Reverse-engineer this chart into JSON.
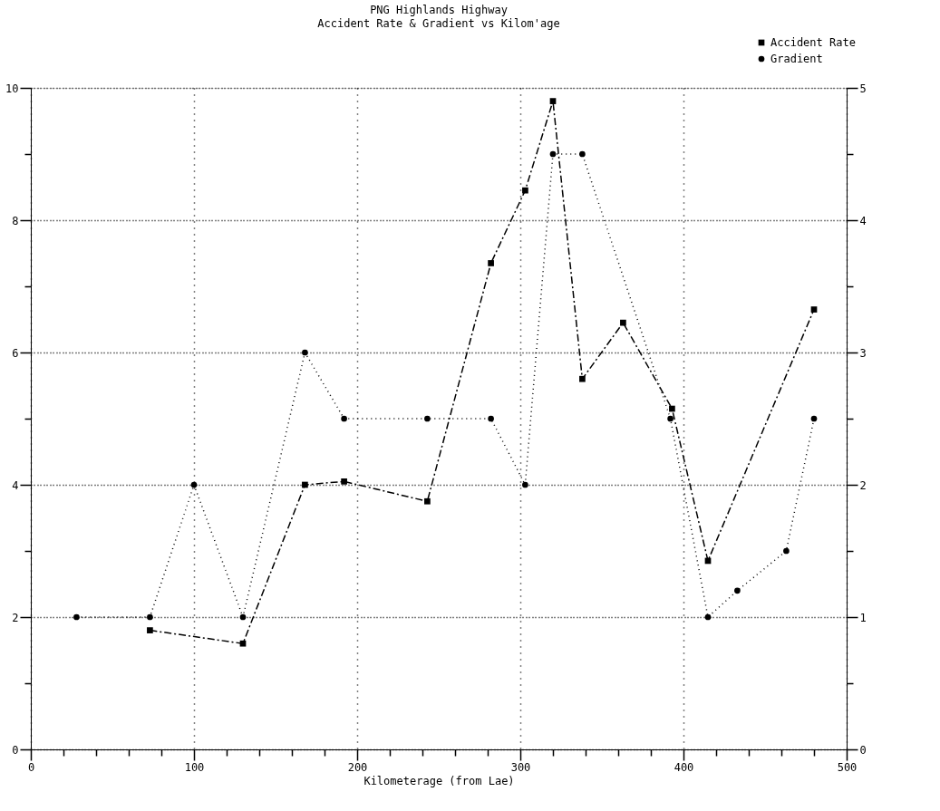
{
  "chart_data": {
    "type": "line",
    "title": "PNG Highlands Highway",
    "subtitle": "Accident Rate & Gradient vs Kilom'age",
    "xlabel": "Kilometerage (from Lae)",
    "xlim": [
      0,
      500
    ],
    "ylim": [
      0,
      10
    ],
    "y2lim": [
      0,
      5
    ],
    "xticks": [
      0,
      {
        "value": 20,
        "label": null
      },
      {
        "value": 40,
        "label": null
      },
      {
        "value": 60,
        "label": null
      },
      {
        "value": 80,
        "label": null
      },
      100,
      {
        "value": 120,
        "label": null
      },
      {
        "value": 140,
        "label": null
      },
      {
        "value": 160,
        "label": null
      },
      {
        "value": 180,
        "label": null
      },
      200,
      {
        "value": 220,
        "label": null
      },
      {
        "value": 240,
        "label": null
      },
      {
        "value": 260,
        "label": null
      },
      {
        "value": 280,
        "label": null
      },
      300,
      {
        "value": 320,
        "label": null
      },
      {
        "value": 340,
        "label": null
      },
      {
        "value": 360,
        "label": null
      },
      {
        "value": 380,
        "label": null
      },
      400,
      {
        "value": 420,
        "label": null
      },
      {
        "value": 440,
        "label": null
      },
      {
        "value": 460,
        "label": null
      },
      {
        "value": 480,
        "label": null
      },
      500
    ],
    "yticks": [
      0,
      {
        "value": 1,
        "label": null
      },
      2,
      {
        "value": 3,
        "label": null
      },
      4,
      {
        "value": 5,
        "label": null
      },
      6,
      {
        "value": 7,
        "label": null
      },
      8,
      {
        "value": 9,
        "label": null
      },
      10
    ],
    "y2ticks": [
      0,
      {
        "value": 0.5,
        "label": null
      },
      1,
      {
        "value": 1.5,
        "label": null
      },
      2,
      {
        "value": 2.5,
        "label": null
      },
      3,
      {
        "value": 3.5,
        "label": null
      },
      4,
      {
        "value": 4.5,
        "label": null
      },
      5
    ],
    "grid": true,
    "legend": "top right",
    "series": [
      {
        "name": "Accident Rate",
        "color": "#000000",
        "marker": "square",
        "line_style": "dashed",
        "x": [
          73,
          130,
          168,
          192,
          243,
          282,
          303,
          320,
          338,
          363,
          393,
          415,
          480
        ],
        "values": [
          1.8,
          1.6,
          4.0,
          4.05,
          3.75,
          7.35,
          8.45,
          9.8,
          5.6,
          6.45,
          5.15,
          2.85,
          6.65
        ]
      },
      {
        "name": "Gradient",
        "color": "#000000",
        "marker": "circle",
        "line_style": "dotted",
        "axis": "y2",
        "x": [
          28,
          73,
          100,
          130,
          168,
          192,
          243,
          282,
          303,
          320,
          338,
          392,
          415,
          433,
          463,
          480
        ],
        "values": [
          1,
          1,
          2,
          1,
          3,
          2.5,
          2.5,
          2.5,
          2,
          4.5,
          4.5,
          2.5,
          1,
          1.2,
          1.5,
          2.5
        ]
      }
    ]
  }
}
